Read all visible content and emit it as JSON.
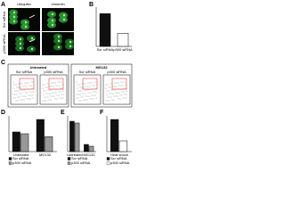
{
  "panels": {
    "A": {
      "label": "A",
      "channels": [
        "Ubiquitin",
        "Vimentin"
      ],
      "rows": [
        "Scr siRNA",
        "p300 siRNA"
      ]
    },
    "B": {
      "label": "B"
    },
    "C": {
      "label": "C",
      "conditions": [
        "Untreated",
        "MG132"
      ],
      "plots": [
        "Scr siRNA",
        "p300 siRNA"
      ]
    },
    "D": {
      "label": "D"
    },
    "E": {
      "label": "E"
    },
    "F": {
      "label": "F"
    }
  },
  "chart_data": [
    {
      "type": "bar",
      "categories": [
        "Scr siRNA",
        "p300 siRNA"
      ],
      "values": [
        100,
        40
      ],
      "colors": [
        "#111111",
        "#ffffff"
      ],
      "ylim": [
        0,
        120
      ]
    },
    {
      "type": "grouped-bar",
      "categories": [
        "Untreated",
        "MG132"
      ],
      "series": [
        {
          "name": "Scr siRNA",
          "color": "#111111",
          "values": [
            55,
            90
          ]
        },
        {
          "name": "p300 siRNA",
          "color": "#999999",
          "values": [
            50,
            42
          ]
        }
      ],
      "ylim": [
        0,
        100
      ]
    },
    {
      "type": "grouped-bar",
      "categories": [
        "Untreated",
        "MG132"
      ],
      "series": [
        {
          "name": "Scr siRNA",
          "color": "#111111",
          "values": [
            85,
            20
          ]
        },
        {
          "name": "p300 siRNA",
          "color": "#999999",
          "values": [
            80,
            15
          ]
        }
      ],
      "ylim": [
        0,
        100
      ]
    },
    {
      "type": "grouped-bar",
      "categories": [
        "Heat shock"
      ],
      "series": [
        {
          "name": "Scr siRNA",
          "color": "#111111",
          "values": [
            90
          ]
        },
        {
          "name": "p300 siRNA",
          "color": "#ffffff",
          "values": [
            30
          ]
        }
      ],
      "ylim": [
        0,
        100
      ]
    }
  ]
}
